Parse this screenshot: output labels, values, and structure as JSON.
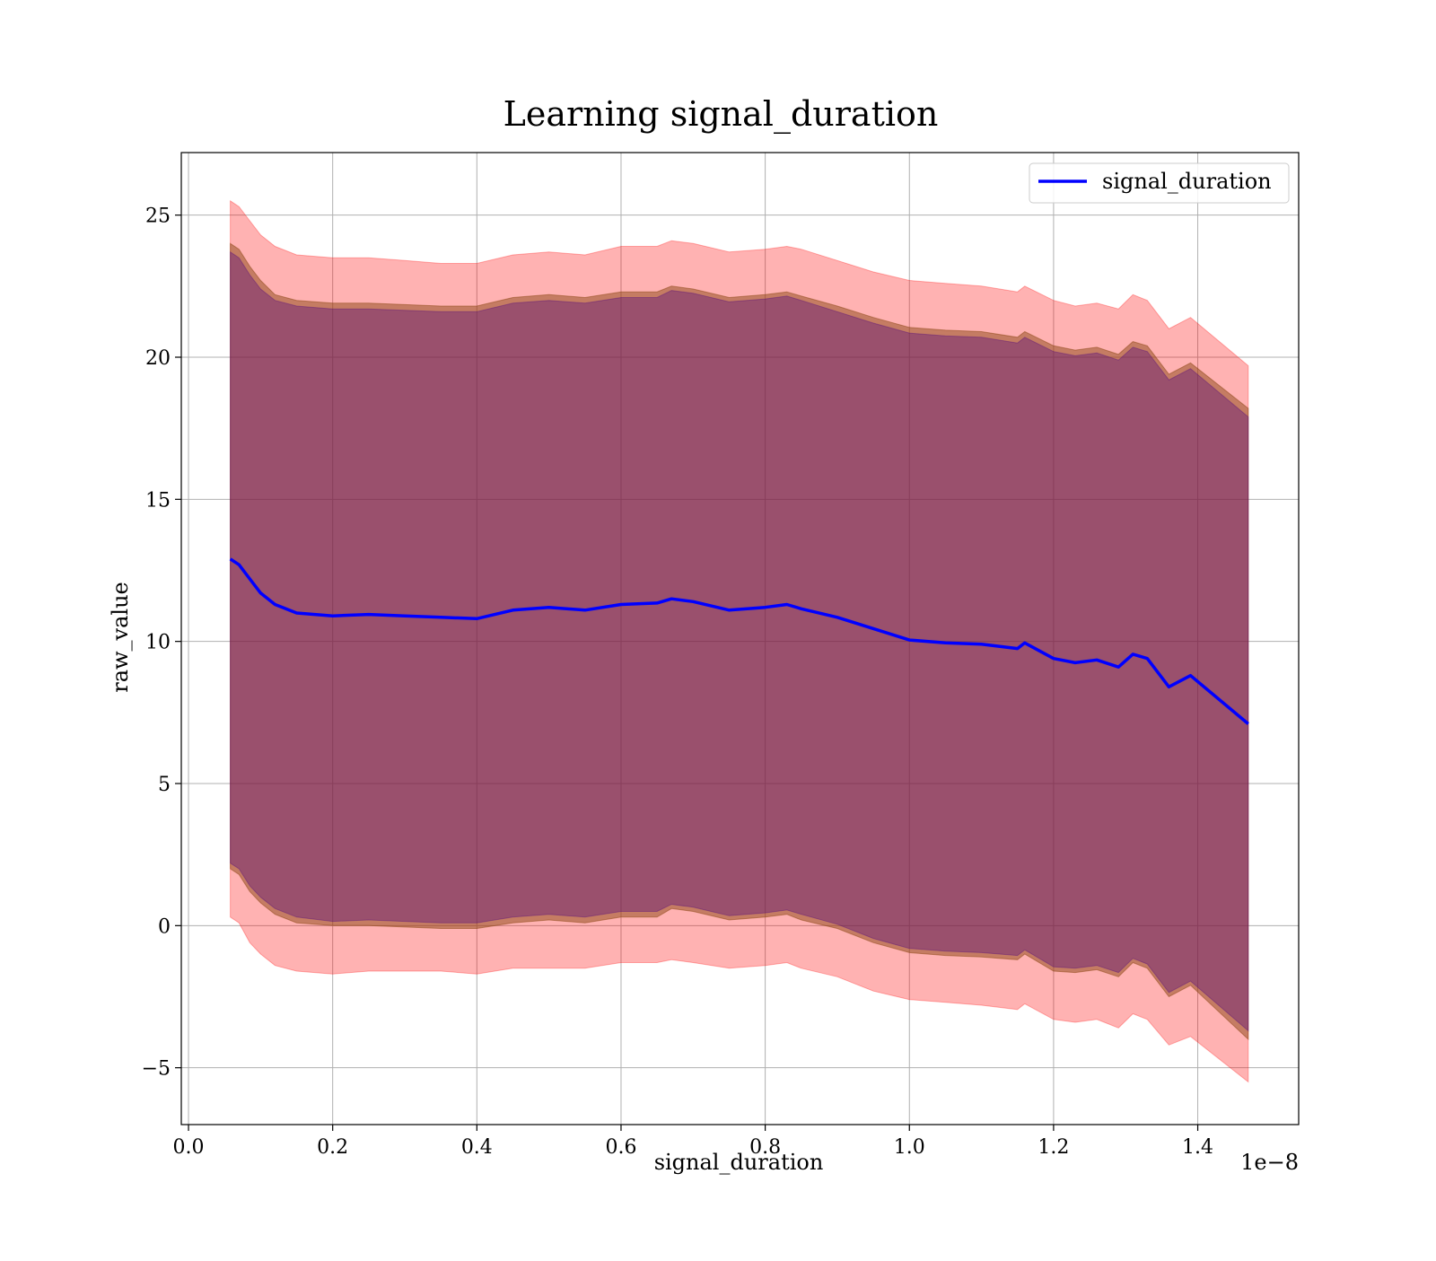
{
  "chart_data": {
    "type": "line",
    "title": "Learning signal_duration",
    "xlabel": "signal_duration",
    "ylabel": "raw_value",
    "x_offset_label": "1e−8",
    "x_scale": 1e-08,
    "xlim": [
      -0.01,
      1.54
    ],
    "ylim": [
      -7.0,
      27.2
    ],
    "xticks": [
      0.0,
      0.2,
      0.4,
      0.6,
      0.8,
      1.0,
      1.2,
      1.4
    ],
    "xtick_labels": [
      "0.0",
      "0.2",
      "0.4",
      "0.6",
      "0.8",
      "1.0",
      "1.2",
      "1.4"
    ],
    "yticks": [
      -5,
      0,
      5,
      10,
      15,
      20,
      25
    ],
    "ytick_labels": [
      "−5",
      "0",
      "5",
      "10",
      "15",
      "20",
      "25"
    ],
    "grid": true,
    "legend": {
      "position": "top-right",
      "entries": [
        "signal_duration"
      ]
    },
    "series": [
      {
        "name": "signal_duration",
        "color": "#0000ff",
        "x": [
          0.058,
          0.07,
          0.085,
          0.1,
          0.12,
          0.15,
          0.2,
          0.25,
          0.3,
          0.35,
          0.4,
          0.45,
          0.5,
          0.55,
          0.6,
          0.65,
          0.67,
          0.7,
          0.75,
          0.8,
          0.83,
          0.85,
          0.9,
          0.95,
          1.0,
          1.05,
          1.1,
          1.15,
          1.16,
          1.2,
          1.23,
          1.26,
          1.29,
          1.31,
          1.33,
          1.36,
          1.39,
          1.47
        ],
        "y": [
          12.9,
          12.7,
          12.2,
          11.7,
          11.3,
          11.0,
          10.9,
          10.95,
          10.9,
          10.85,
          10.8,
          11.1,
          11.2,
          11.1,
          11.3,
          11.35,
          11.5,
          11.4,
          11.1,
          11.2,
          11.3,
          11.15,
          10.85,
          10.45,
          10.05,
          9.95,
          9.9,
          9.75,
          9.95,
          9.4,
          9.25,
          9.35,
          9.1,
          9.55,
          9.4,
          8.4,
          8.8,
          7.1
        ]
      }
    ],
    "bands": [
      {
        "color": "#ff0000",
        "opacity": 0.3,
        "lower": [
          0.3,
          0.1,
          -0.6,
          -1.0,
          -1.4,
          -1.6,
          -1.7,
          -1.6,
          -1.6,
          -1.6,
          -1.7,
          -1.5,
          -1.5,
          -1.5,
          -1.3,
          -1.3,
          -1.2,
          -1.3,
          -1.5,
          -1.4,
          -1.3,
          -1.5,
          -1.8,
          -2.3,
          -2.6,
          -2.7,
          -2.8,
          -2.95,
          -2.75,
          -3.3,
          -3.4,
          -3.3,
          -3.6,
          -3.1,
          -3.3,
          -4.2,
          -3.9,
          -5.5
        ],
        "upper": [
          25.5,
          25.3,
          24.8,
          24.3,
          23.9,
          23.6,
          23.5,
          23.5,
          23.4,
          23.3,
          23.3,
          23.6,
          23.7,
          23.6,
          23.9,
          23.9,
          24.1,
          24.0,
          23.7,
          23.8,
          23.9,
          23.8,
          23.4,
          23.0,
          22.7,
          22.6,
          22.5,
          22.3,
          22.5,
          22.0,
          21.8,
          21.9,
          21.7,
          22.2,
          22.0,
          21.0,
          21.4,
          19.7
        ]
      },
      {
        "color": "#8b4513",
        "opacity": 0.5,
        "lower": [
          2.0,
          1.8,
          1.2,
          0.8,
          0.4,
          0.1,
          0.0,
          0.0,
          -0.05,
          -0.1,
          -0.1,
          0.1,
          0.2,
          0.1,
          0.3,
          0.3,
          0.6,
          0.5,
          0.2,
          0.3,
          0.4,
          0.2,
          -0.1,
          -0.6,
          -0.95,
          -1.05,
          -1.1,
          -1.2,
          -1.0,
          -1.6,
          -1.65,
          -1.55,
          -1.8,
          -1.3,
          -1.5,
          -2.5,
          -2.1,
          -4.0
        ],
        "upper": [
          24.0,
          23.8,
          23.2,
          22.7,
          22.2,
          22.0,
          21.9,
          21.9,
          21.85,
          21.8,
          21.8,
          22.1,
          22.2,
          22.1,
          22.3,
          22.3,
          22.5,
          22.4,
          22.1,
          22.2,
          22.3,
          22.15,
          21.8,
          21.4,
          21.05,
          20.95,
          20.9,
          20.7,
          20.9,
          20.4,
          20.25,
          20.35,
          20.1,
          20.55,
          20.4,
          19.4,
          19.8,
          18.2
        ]
      },
      {
        "color": "#4b0082",
        "opacity": 0.35,
        "lower": [
          2.2,
          2.0,
          1.4,
          1.0,
          0.6,
          0.3,
          0.15,
          0.2,
          0.15,
          0.1,
          0.1,
          0.3,
          0.4,
          0.3,
          0.5,
          0.5,
          0.75,
          0.65,
          0.35,
          0.45,
          0.55,
          0.4,
          0.05,
          -0.45,
          -0.8,
          -0.9,
          -0.95,
          -1.05,
          -0.85,
          -1.45,
          -1.5,
          -1.4,
          -1.65,
          -1.15,
          -1.35,
          -2.35,
          -1.95,
          -3.7
        ],
        "upper": [
          23.7,
          23.5,
          22.9,
          22.4,
          22.0,
          21.8,
          21.7,
          21.7,
          21.65,
          21.6,
          21.6,
          21.9,
          22.0,
          21.9,
          22.1,
          22.1,
          22.35,
          22.25,
          21.95,
          22.05,
          22.15,
          22.0,
          21.6,
          21.2,
          20.85,
          20.75,
          20.7,
          20.5,
          20.7,
          20.2,
          20.05,
          20.15,
          19.9,
          20.35,
          20.2,
          19.2,
          19.6,
          17.9
        ]
      }
    ]
  }
}
